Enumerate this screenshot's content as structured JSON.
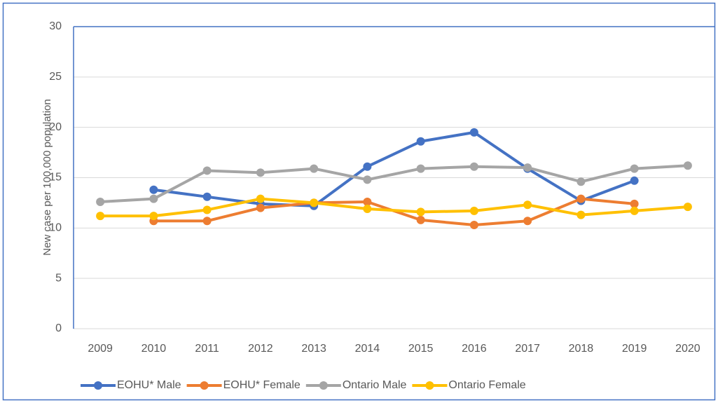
{
  "chart_data": {
    "type": "line",
    "y_label": "New case per 100,000 population",
    "categories": [
      "2009",
      "2010",
      "2011",
      "2012",
      "2013",
      "2014",
      "2015",
      "2016",
      "2017",
      "2018",
      "2019",
      "2020"
    ],
    "series": [
      {
        "name": "EOHU* Male",
        "color": "#4472c4",
        "values": [
          null,
          13.8,
          13.1,
          12.4,
          12.2,
          16.1,
          18.6,
          19.5,
          15.9,
          12.7,
          14.7,
          null
        ]
      },
      {
        "name": "EOHU* Female",
        "color": "#ed7d31",
        "values": [
          null,
          10.7,
          10.7,
          12.0,
          12.5,
          12.6,
          10.8,
          10.3,
          10.7,
          12.9,
          12.4,
          null
        ]
      },
      {
        "name": "Ontario Male",
        "color": "#a5a5a5",
        "values": [
          12.6,
          12.9,
          15.7,
          15.5,
          15.9,
          14.8,
          15.9,
          16.1,
          16.0,
          14.6,
          15.9,
          16.2
        ]
      },
      {
        "name": "Ontario Female",
        "color": "#ffc000",
        "values": [
          11.2,
          11.2,
          11.8,
          12.9,
          12.5,
          11.9,
          11.6,
          11.7,
          12.3,
          11.3,
          11.7,
          12.1
        ]
      }
    ],
    "ylim": [
      0,
      30
    ],
    "yticks": [
      0,
      5,
      10,
      15,
      20,
      25,
      30
    ],
    "grid": true,
    "legend": "bottom"
  }
}
